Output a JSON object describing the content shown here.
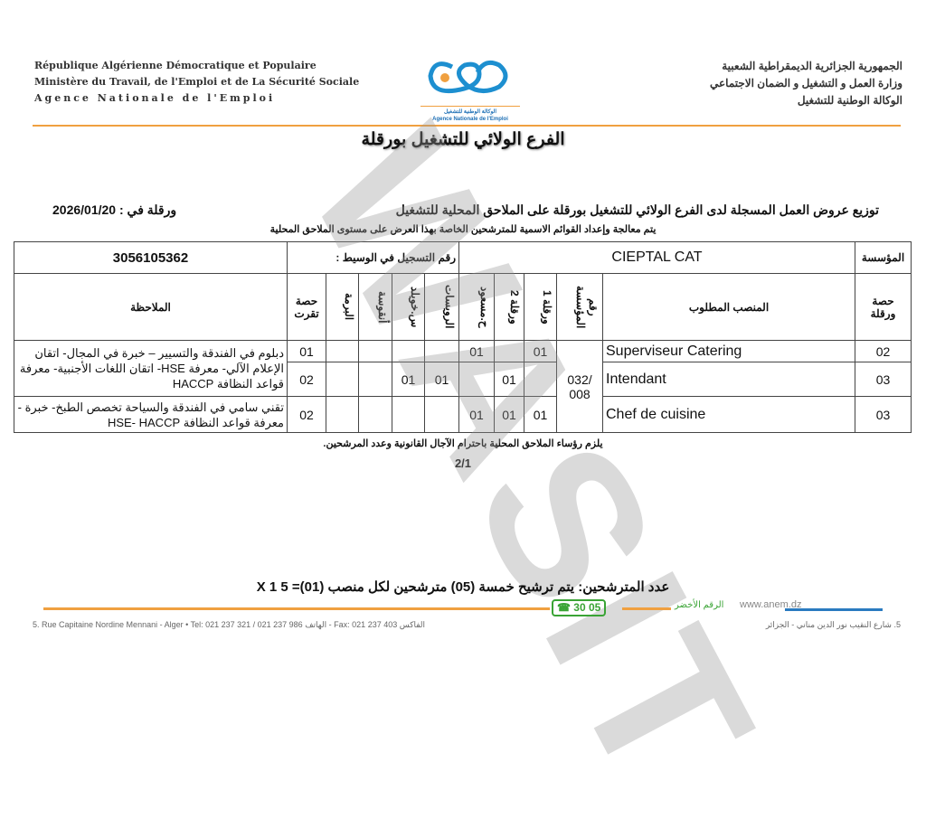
{
  "header": {
    "fr_lines": [
      "République Algérienne Démocratique et Populaire",
      "Ministère du Travail, de l'Emploi et de La Sécurité Sociale",
      "Agence Nationale de l'Emploi"
    ],
    "ar_lines": [
      "الجمهورية الجزائرية الديمقراطية الشعبية",
      "وزارة العمل و التشغيل و الضمان الاجتماعي",
      "الوكالة الوطنية للتشغيل"
    ],
    "logo_caption_ar": "الوكالة الوطنية للتشغيل",
    "logo_caption_fr": "Agence Nationale de l'Emploi",
    "branch": "الفرع الولائي للتشغيل بورقلة"
  },
  "doc": {
    "title": "توزيع عروض العمل المسجلة لدى الفرع الولائي للتشغيل بورقلة على الملاحق المحلية للتشغيل",
    "date": "ورقلة في : 2026/01/20",
    "subtitle": "يتم معالجة وإعداد القوائم الاسمية للمترشحين الخاصة بهذا العرض على مستوى الملاحق المحلية"
  },
  "table": {
    "company_label": "المؤسسة",
    "company": "CIEPTAL CAT",
    "reg_label": "رقم التسجيل في الوسيط :",
    "reg_number": "3056105362",
    "headers": [
      "حصة ورقلة",
      "المنصب المطلوب",
      "رقم المؤسسة",
      "ورقلة 1",
      "ورقلة 2",
      "ح.مسعود",
      "الرويسات",
      "س.خويلد",
      "أنقوسة",
      "البرمة",
      "حصة تقرت",
      "الملاحظة"
    ],
    "company_number": "/032 008",
    "rows": [
      {
        "ouargla": "02",
        "position": "Superviseur Catering",
        "o1": "01",
        "o2": "",
        "hm": "01",
        "rouissat": "",
        "sk": "",
        "ngoussa": "",
        "borma": "",
        "touggourt": "01"
      },
      {
        "ouargla": "03",
        "position": "Intendant",
        "o1": "",
        "o2": "01",
        "hm": "",
        "rouissat": "01",
        "sk": "01",
        "ngoussa": "",
        "borma": "",
        "touggourt": "02"
      },
      {
        "ouargla": "03",
        "position": "Chef de cuisine",
        "o1": "01",
        "o2": "01",
        "hm": "01",
        "rouissat": "",
        "sk": "",
        "ngoussa": "",
        "borma": "",
        "touggourt": "02"
      }
    ],
    "remarks": [
      "دبلوم في الفندقة والتسيير – خبرة في المجال- اتقان الإعلام الآلي- معرفة HSE- اتقان اللغات الأجنبية- معرفة قواعد النظافة HACCP",
      "تقني سامي في الفندقة والسياحة تخصص الطبخ- خبرة - معرفة قواعد النظافة HSE- HACCP"
    ]
  },
  "note": "يلزم رؤساء الملاحق المحلية باحترام الآجال القانونية وعدد المرشحين.",
  "page": "2/1",
  "watermark": "WASIT",
  "candidates": "عدد المترشحين: يتم ترشيح خمسة (05) مترشحين لكل منصب (01)= 5 X 1",
  "footer": {
    "green_number": "30 05",
    "green_label": "الرقم الأخضر",
    "website": "www.anem.dz",
    "address_fr": "5. Rue Capitaine Nordine Mennani - Alger • Tel: 021 237 321 / 021 237 986 الهاتف - Fax: 021 237 403 الفاكس",
    "address_ar": "5. شارع النقيب نور الدين مناني - الجزائر"
  },
  "colors": {
    "orange": "#f0a040",
    "blue": "#2a7bc0",
    "green": "#3aa435"
  }
}
